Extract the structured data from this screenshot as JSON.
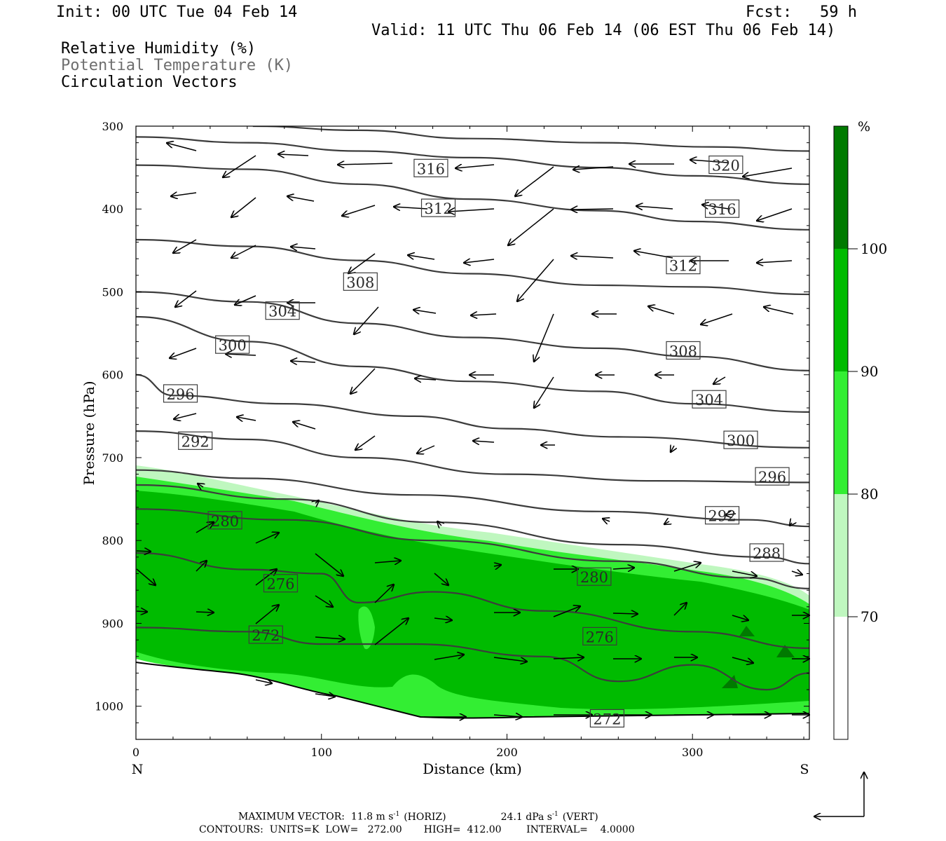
{
  "header": {
    "init": "Init: 00 UTC Tue 04 Feb 14",
    "fcst": "Fcst:   59 h",
    "valid": "Valid: 11 UTC Thu 06 Feb 14 (06 EST Thu 06 Feb 14)",
    "field1": "Relative Humidity (%)",
    "field2": "Potential Temperature (K)",
    "field3": "Circulation Vectors"
  },
  "footer": {
    "line1_a": "MAXIMUM VECTOR:  11.8 m s",
    "line1_b": "(HORIZ)",
    "line1_c": "24.1 dPa s",
    "line1_d": "(VERT)",
    "sup": "-1",
    "line2": "CONTOURS:  UNITS=K  LOW=   272.00       HIGH=  412.00        INTERVAL=    4.0000"
  },
  "chart_data": {
    "type": "contour",
    "xlabel": "Distance (km)",
    "ylabel": "Pressure (hPa)",
    "x_ticks": [
      0,
      100,
      200,
      300
    ],
    "y_ticks": [
      300,
      400,
      500,
      600,
      700,
      800,
      900,
      1000
    ],
    "xlim": [
      0,
      363
    ],
    "ylim": [
      300,
      1040
    ],
    "y_inverted": true,
    "end_labels": {
      "left": "N",
      "right": "S"
    },
    "colorbar": {
      "unit": "%",
      "levels": [
        70,
        80,
        90,
        100
      ],
      "colors": [
        "#ffffff",
        "#bff7bf",
        "#33ee33",
        "#00bb00",
        "#007a00"
      ]
    },
    "theta_contours": [
      {
        "value": 320,
        "points": [
          [
            63,
            300
          ],
          [
            120,
            305
          ],
          [
            180,
            315
          ],
          [
            250,
            320
          ],
          [
            310,
            325
          ],
          [
            363,
            330
          ]
        ]
      },
      {
        "value": 316,
        "points": [
          [
            0,
            313
          ],
          [
            60,
            320
          ],
          [
            120,
            330
          ],
          [
            180,
            338
          ],
          [
            250,
            350
          ],
          [
            300,
            360
          ],
          [
            363,
            370
          ]
        ]
      },
      {
        "value": 312,
        "points": [
          [
            0,
            347
          ],
          [
            60,
            352
          ],
          [
            120,
            370
          ],
          [
            180,
            388
          ],
          [
            250,
            402
          ],
          [
            300,
            415
          ],
          [
            363,
            425
          ]
        ]
      },
      {
        "value": 308,
        "points": [
          [
            0,
            437
          ],
          [
            60,
            445
          ],
          [
            120,
            462
          ],
          [
            180,
            478
          ],
          [
            250,
            492
          ],
          [
            300,
            494
          ],
          [
            363,
            503
          ]
        ]
      },
      {
        "value": 304,
        "points": [
          [
            0,
            500
          ],
          [
            60,
            512
          ],
          [
            120,
            538
          ],
          [
            180,
            555
          ],
          [
            250,
            568
          ],
          [
            300,
            578
          ],
          [
            363,
            595
          ]
        ]
      },
      {
        "value": 300,
        "points": [
          [
            0,
            530
          ],
          [
            60,
            560
          ],
          [
            120,
            590
          ],
          [
            180,
            608
          ],
          [
            250,
            620
          ],
          [
            300,
            635
          ],
          [
            363,
            645
          ]
        ]
      },
      {
        "value": 296,
        "points": [
          [
            0,
            600
          ],
          [
            20,
            625
          ],
          [
            80,
            635
          ],
          [
            150,
            650
          ],
          [
            200,
            665
          ],
          [
            260,
            675
          ],
          [
            363,
            688
          ]
        ]
      },
      {
        "value": 292,
        "points": [
          [
            0,
            668
          ],
          [
            60,
            678
          ],
          [
            120,
            700
          ],
          [
            200,
            720
          ],
          [
            280,
            728
          ],
          [
            363,
            730
          ]
        ]
      },
      {
        "value": 288,
        "points": [
          [
            0,
            715
          ],
          [
            60,
            725
          ],
          [
            150,
            745
          ],
          [
            250,
            765
          ],
          [
            330,
            775
          ],
          [
            363,
            783
          ]
        ]
      },
      {
        "value": 284,
        "points": [
          [
            0,
            733
          ],
          [
            80,
            750
          ],
          [
            160,
            778
          ],
          [
            260,
            805
          ],
          [
            340,
            820
          ],
          [
            363,
            828
          ]
        ]
      },
      {
        "value": 280,
        "points": [
          [
            0,
            762
          ],
          [
            80,
            775
          ],
          [
            160,
            800
          ],
          [
            260,
            825
          ],
          [
            330,
            845
          ],
          [
            363,
            858
          ]
        ]
      },
      {
        "value": 276,
        "points": [
          [
            0,
            815
          ],
          [
            60,
            835
          ],
          [
            100,
            840
          ],
          [
            120,
            875
          ],
          [
            160,
            862
          ],
          [
            220,
            885
          ],
          [
            300,
            910
          ],
          [
            363,
            930
          ]
        ]
      },
      {
        "value": 272,
        "points": [
          [
            0,
            905
          ],
          [
            60,
            910
          ],
          [
            100,
            925
          ],
          [
            150,
            925
          ],
          [
            220,
            940
          ],
          [
            260,
            970
          ],
          [
            300,
            950
          ],
          [
            340,
            980
          ],
          [
            363,
            960
          ]
        ]
      }
    ],
    "contour_labels": [
      {
        "text": "320",
        "x": 318,
        "p": 347
      },
      {
        "text": "316",
        "x": 159,
        "p": 351
      },
      {
        "text": "316",
        "x": 316,
        "p": 400
      },
      {
        "text": "312",
        "x": 163,
        "p": 399
      },
      {
        "text": "312",
        "x": 295,
        "p": 468
      },
      {
        "text": "308",
        "x": 121,
        "p": 488
      },
      {
        "text": "308",
        "x": 295,
        "p": 571
      },
      {
        "text": "304",
        "x": 79,
        "p": 523
      },
      {
        "text": "304",
        "x": 309,
        "p": 630
      },
      {
        "text": "300",
        "x": 52,
        "p": 564
      },
      {
        "text": "300",
        "x": 326,
        "p": 679
      },
      {
        "text": "296",
        "x": 24,
        "p": 623
      },
      {
        "text": "296",
        "x": 343,
        "p": 723
      },
      {
        "text": "292",
        "x": 32,
        "p": 680
      },
      {
        "text": "292",
        "x": 316,
        "p": 770
      },
      {
        "text": "288",
        "x": 340,
        "p": 815
      },
      {
        "text": "280",
        "x": 48,
        "p": 776
      },
      {
        "text": "280",
        "x": 247,
        "p": 844
      },
      {
        "text": "276",
        "x": 78,
        "p": 852
      },
      {
        "text": "276",
        "x": 250,
        "p": 916
      },
      {
        "text": "272",
        "x": 70,
        "p": 914
      },
      {
        "text": "272",
        "x": 254,
        "p": 1015
      }
    ]
  }
}
